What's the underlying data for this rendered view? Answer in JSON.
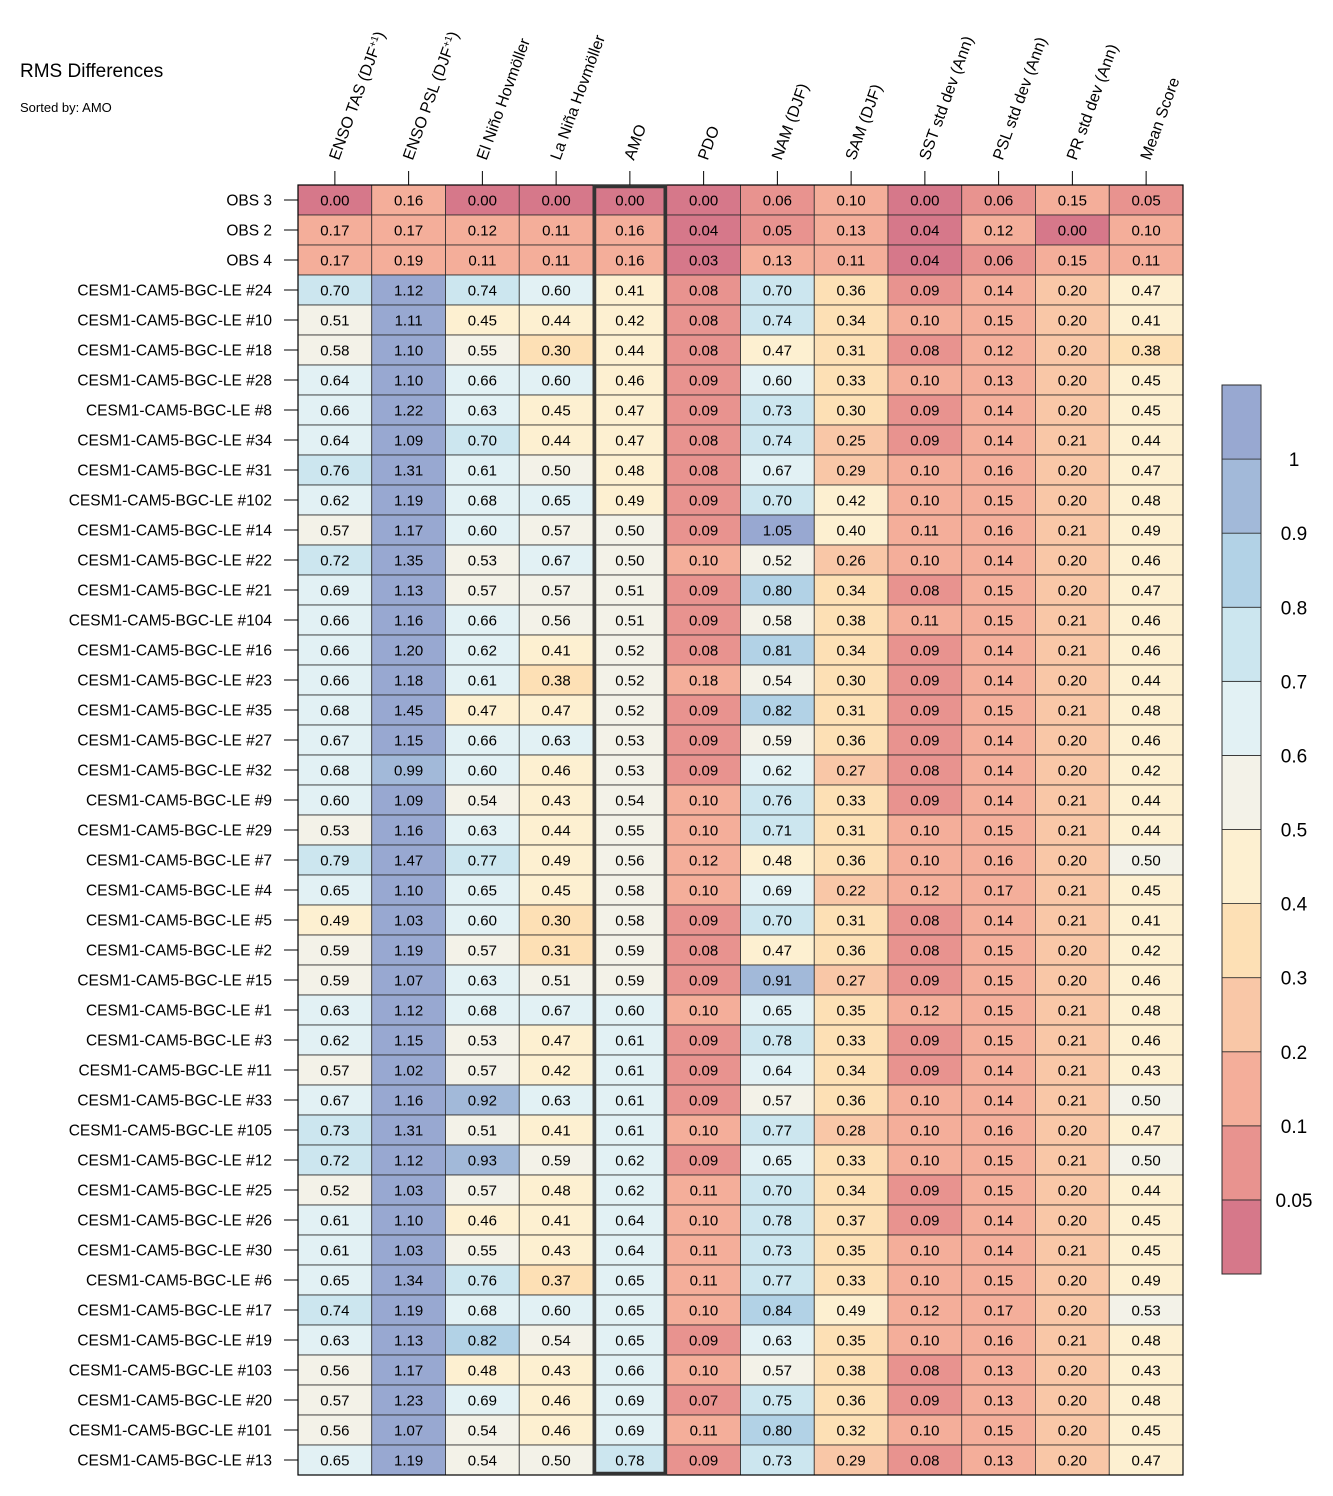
{
  "chart_data": {
    "type": "heatmap",
    "title": "RMS Differences",
    "subtitle": "Sorted by: AMO",
    "highlight_column": "AMO",
    "columns": [
      {
        "pre": "ENSO TAS (DJF",
        "sup": "+1",
        "post": ")"
      },
      {
        "pre": "ENSO PSL (DJF",
        "sup": "+1",
        "post": ")"
      },
      {
        "pre": "El Niño Hovmöller",
        "sup": "",
        "post": ""
      },
      {
        "pre": "La Niña Hovmöller",
        "sup": "",
        "post": ""
      },
      {
        "pre": "AMO",
        "sup": "",
        "post": ""
      },
      {
        "pre": "PDO",
        "sup": "",
        "post": ""
      },
      {
        "pre": "NAM (DJF)",
        "sup": "",
        "post": ""
      },
      {
        "pre": "SAM (DJF)",
        "sup": "",
        "post": ""
      },
      {
        "pre": "SST std dev (Ann)",
        "sup": "",
        "post": ""
      },
      {
        "pre": "PSL std dev (Ann)",
        "sup": "",
        "post": ""
      },
      {
        "pre": "PR std dev (Ann)",
        "sup": "",
        "post": ""
      },
      {
        "pre": "Mean Score",
        "sup": "",
        "post": ""
      }
    ],
    "rows": [
      "OBS 3",
      "OBS 2",
      "OBS 4",
      "CESM1-CAM5-BGC-LE #24",
      "CESM1-CAM5-BGC-LE #10",
      "CESM1-CAM5-BGC-LE #18",
      "CESM1-CAM5-BGC-LE #28",
      "CESM1-CAM5-BGC-LE #8",
      "CESM1-CAM5-BGC-LE #34",
      "CESM1-CAM5-BGC-LE #31",
      "CESM1-CAM5-BGC-LE #102",
      "CESM1-CAM5-BGC-LE #14",
      "CESM1-CAM5-BGC-LE #22",
      "CESM1-CAM5-BGC-LE #21",
      "CESM1-CAM5-BGC-LE #104",
      "CESM1-CAM5-BGC-LE #16",
      "CESM1-CAM5-BGC-LE #23",
      "CESM1-CAM5-BGC-LE #35",
      "CESM1-CAM5-BGC-LE #27",
      "CESM1-CAM5-BGC-LE #32",
      "CESM1-CAM5-BGC-LE #9",
      "CESM1-CAM5-BGC-LE #29",
      "CESM1-CAM5-BGC-LE #7",
      "CESM1-CAM5-BGC-LE #4",
      "CESM1-CAM5-BGC-LE #5",
      "CESM1-CAM5-BGC-LE #2",
      "CESM1-CAM5-BGC-LE #15",
      "CESM1-CAM5-BGC-LE #1",
      "CESM1-CAM5-BGC-LE #3",
      "CESM1-CAM5-BGC-LE #11",
      "CESM1-CAM5-BGC-LE #33",
      "CESM1-CAM5-BGC-LE #105",
      "CESM1-CAM5-BGC-LE #12",
      "CESM1-CAM5-BGC-LE #25",
      "CESM1-CAM5-BGC-LE #26",
      "CESM1-CAM5-BGC-LE #30",
      "CESM1-CAM5-BGC-LE #6",
      "CESM1-CAM5-BGC-LE #17",
      "CESM1-CAM5-BGC-LE #19",
      "CESM1-CAM5-BGC-LE #103",
      "CESM1-CAM5-BGC-LE #20",
      "CESM1-CAM5-BGC-LE #101",
      "CESM1-CAM5-BGC-LE #13"
    ],
    "values": [
      [
        "0.00",
        "0.16",
        "0.00",
        "0.00",
        "0.00",
        "0.00",
        "0.06",
        "0.10",
        "0.00",
        "0.06",
        "0.15",
        "0.05"
      ],
      [
        "0.17",
        "0.17",
        "0.12",
        "0.11",
        "0.16",
        "0.04",
        "0.05",
        "0.13",
        "0.04",
        "0.12",
        "0.00",
        "0.10"
      ],
      [
        "0.17",
        "0.19",
        "0.11",
        "0.11",
        "0.16",
        "0.03",
        "0.13",
        "0.11",
        "0.04",
        "0.06",
        "0.15",
        "0.11"
      ],
      [
        "0.70",
        "1.12",
        "0.74",
        "0.60",
        "0.41",
        "0.08",
        "0.70",
        "0.36",
        "0.09",
        "0.14",
        "0.20",
        "0.47"
      ],
      [
        "0.51",
        "1.11",
        "0.45",
        "0.44",
        "0.42",
        "0.08",
        "0.74",
        "0.34",
        "0.10",
        "0.15",
        "0.20",
        "0.41"
      ],
      [
        "0.58",
        "1.10",
        "0.55",
        "0.30",
        "0.44",
        "0.08",
        "0.47",
        "0.31",
        "0.08",
        "0.12",
        "0.20",
        "0.38"
      ],
      [
        "0.64",
        "1.10",
        "0.66",
        "0.60",
        "0.46",
        "0.09",
        "0.60",
        "0.33",
        "0.10",
        "0.13",
        "0.20",
        "0.45"
      ],
      [
        "0.66",
        "1.22",
        "0.63",
        "0.45",
        "0.47",
        "0.09",
        "0.73",
        "0.30",
        "0.09",
        "0.14",
        "0.20",
        "0.45"
      ],
      [
        "0.64",
        "1.09",
        "0.70",
        "0.44",
        "0.47",
        "0.08",
        "0.74",
        "0.25",
        "0.09",
        "0.14",
        "0.21",
        "0.44"
      ],
      [
        "0.76",
        "1.31",
        "0.61",
        "0.50",
        "0.48",
        "0.08",
        "0.67",
        "0.29",
        "0.10",
        "0.16",
        "0.20",
        "0.47"
      ],
      [
        "0.62",
        "1.19",
        "0.68",
        "0.65",
        "0.49",
        "0.09",
        "0.70",
        "0.42",
        "0.10",
        "0.15",
        "0.20",
        "0.48"
      ],
      [
        "0.57",
        "1.17",
        "0.60",
        "0.57",
        "0.50",
        "0.09",
        "1.05",
        "0.40",
        "0.11",
        "0.16",
        "0.21",
        "0.49"
      ],
      [
        "0.72",
        "1.35",
        "0.53",
        "0.67",
        "0.50",
        "0.10",
        "0.52",
        "0.26",
        "0.10",
        "0.14",
        "0.20",
        "0.46"
      ],
      [
        "0.69",
        "1.13",
        "0.57",
        "0.57",
        "0.51",
        "0.09",
        "0.80",
        "0.34",
        "0.08",
        "0.15",
        "0.20",
        "0.47"
      ],
      [
        "0.66",
        "1.16",
        "0.66",
        "0.56",
        "0.51",
        "0.09",
        "0.58",
        "0.38",
        "0.11",
        "0.15",
        "0.21",
        "0.46"
      ],
      [
        "0.66",
        "1.20",
        "0.62",
        "0.41",
        "0.52",
        "0.08",
        "0.81",
        "0.34",
        "0.09",
        "0.14",
        "0.21",
        "0.46"
      ],
      [
        "0.66",
        "1.18",
        "0.61",
        "0.38",
        "0.52",
        "0.18",
        "0.54",
        "0.30",
        "0.09",
        "0.14",
        "0.20",
        "0.44"
      ],
      [
        "0.68",
        "1.45",
        "0.47",
        "0.47",
        "0.52",
        "0.09",
        "0.82",
        "0.31",
        "0.09",
        "0.15",
        "0.21",
        "0.48"
      ],
      [
        "0.67",
        "1.15",
        "0.66",
        "0.63",
        "0.53",
        "0.09",
        "0.59",
        "0.36",
        "0.09",
        "0.14",
        "0.20",
        "0.46"
      ],
      [
        "0.68",
        "0.99",
        "0.60",
        "0.46",
        "0.53",
        "0.09",
        "0.62",
        "0.27",
        "0.08",
        "0.14",
        "0.20",
        "0.42"
      ],
      [
        "0.60",
        "1.09",
        "0.54",
        "0.43",
        "0.54",
        "0.10",
        "0.76",
        "0.33",
        "0.09",
        "0.14",
        "0.21",
        "0.44"
      ],
      [
        "0.53",
        "1.16",
        "0.63",
        "0.44",
        "0.55",
        "0.10",
        "0.71",
        "0.31",
        "0.10",
        "0.15",
        "0.21",
        "0.44"
      ],
      [
        "0.79",
        "1.47",
        "0.77",
        "0.49",
        "0.56",
        "0.12",
        "0.48",
        "0.36",
        "0.10",
        "0.16",
        "0.20",
        "0.50"
      ],
      [
        "0.65",
        "1.10",
        "0.65",
        "0.45",
        "0.58",
        "0.10",
        "0.69",
        "0.22",
        "0.12",
        "0.17",
        "0.21",
        "0.45"
      ],
      [
        "0.49",
        "1.03",
        "0.60",
        "0.30",
        "0.58",
        "0.09",
        "0.70",
        "0.31",
        "0.08",
        "0.14",
        "0.21",
        "0.41"
      ],
      [
        "0.59",
        "1.19",
        "0.57",
        "0.31",
        "0.59",
        "0.08",
        "0.47",
        "0.36",
        "0.08",
        "0.15",
        "0.20",
        "0.42"
      ],
      [
        "0.59",
        "1.07",
        "0.63",
        "0.51",
        "0.59",
        "0.09",
        "0.91",
        "0.27",
        "0.09",
        "0.15",
        "0.20",
        "0.46"
      ],
      [
        "0.63",
        "1.12",
        "0.68",
        "0.67",
        "0.60",
        "0.10",
        "0.65",
        "0.35",
        "0.12",
        "0.15",
        "0.21",
        "0.48"
      ],
      [
        "0.62",
        "1.15",
        "0.53",
        "0.47",
        "0.61",
        "0.09",
        "0.78",
        "0.33",
        "0.09",
        "0.15",
        "0.21",
        "0.46"
      ],
      [
        "0.57",
        "1.02",
        "0.57",
        "0.42",
        "0.61",
        "0.09",
        "0.64",
        "0.34",
        "0.09",
        "0.14",
        "0.21",
        "0.43"
      ],
      [
        "0.67",
        "1.16",
        "0.92",
        "0.63",
        "0.61",
        "0.09",
        "0.57",
        "0.36",
        "0.10",
        "0.14",
        "0.21",
        "0.50"
      ],
      [
        "0.73",
        "1.31",
        "0.51",
        "0.41",
        "0.61",
        "0.10",
        "0.77",
        "0.28",
        "0.10",
        "0.16",
        "0.20",
        "0.47"
      ],
      [
        "0.72",
        "1.12",
        "0.93",
        "0.59",
        "0.62",
        "0.09",
        "0.65",
        "0.33",
        "0.10",
        "0.15",
        "0.21",
        "0.50"
      ],
      [
        "0.52",
        "1.03",
        "0.57",
        "0.48",
        "0.62",
        "0.11",
        "0.70",
        "0.34",
        "0.09",
        "0.15",
        "0.20",
        "0.44"
      ],
      [
        "0.61",
        "1.10",
        "0.46",
        "0.41",
        "0.64",
        "0.10",
        "0.78",
        "0.37",
        "0.09",
        "0.14",
        "0.20",
        "0.45"
      ],
      [
        "0.61",
        "1.03",
        "0.55",
        "0.43",
        "0.64",
        "0.11",
        "0.73",
        "0.35",
        "0.10",
        "0.14",
        "0.21",
        "0.45"
      ],
      [
        "0.65",
        "1.34",
        "0.76",
        "0.37",
        "0.65",
        "0.11",
        "0.77",
        "0.33",
        "0.10",
        "0.15",
        "0.20",
        "0.49"
      ],
      [
        "0.74",
        "1.19",
        "0.68",
        "0.60",
        "0.65",
        "0.10",
        "0.84",
        "0.49",
        "0.12",
        "0.17",
        "0.20",
        "0.53"
      ],
      [
        "0.63",
        "1.13",
        "0.82",
        "0.54",
        "0.65",
        "0.09",
        "0.63",
        "0.35",
        "0.10",
        "0.16",
        "0.21",
        "0.48"
      ],
      [
        "0.56",
        "1.17",
        "0.48",
        "0.43",
        "0.66",
        "0.10",
        "0.57",
        "0.38",
        "0.08",
        "0.13",
        "0.20",
        "0.43"
      ],
      [
        "0.57",
        "1.23",
        "0.69",
        "0.46",
        "0.69",
        "0.07",
        "0.75",
        "0.36",
        "0.09",
        "0.13",
        "0.20",
        "0.48"
      ],
      [
        "0.56",
        "1.07",
        "0.54",
        "0.46",
        "0.69",
        "0.11",
        "0.80",
        "0.32",
        "0.10",
        "0.15",
        "0.20",
        "0.45"
      ],
      [
        "0.65",
        "1.19",
        "0.54",
        "0.50",
        "0.78",
        "0.09",
        "0.73",
        "0.29",
        "0.08",
        "0.13",
        "0.20",
        "0.47"
      ]
    ],
    "colorbar": {
      "boundaries": [
        0.05,
        0.1,
        0.2,
        0.3,
        0.4,
        0.5,
        0.6,
        0.7,
        0.8,
        0.9,
        1
      ],
      "tick_labels": [
        "0.05",
        "0.1",
        "0.2",
        "0.3",
        "0.4",
        "0.5",
        "0.6",
        "0.7",
        "0.8",
        "0.9",
        "1"
      ],
      "colors": [
        "#d6788a",
        "#e8938f",
        "#f4ae9a",
        "#f9c7a7",
        "#fde0b5",
        "#fdf0d1",
        "#f3f2e8",
        "#e2f1f4",
        "#cce6ef",
        "#b2d2e6",
        "#a2b9d9",
        "#98a8d1"
      ]
    }
  }
}
